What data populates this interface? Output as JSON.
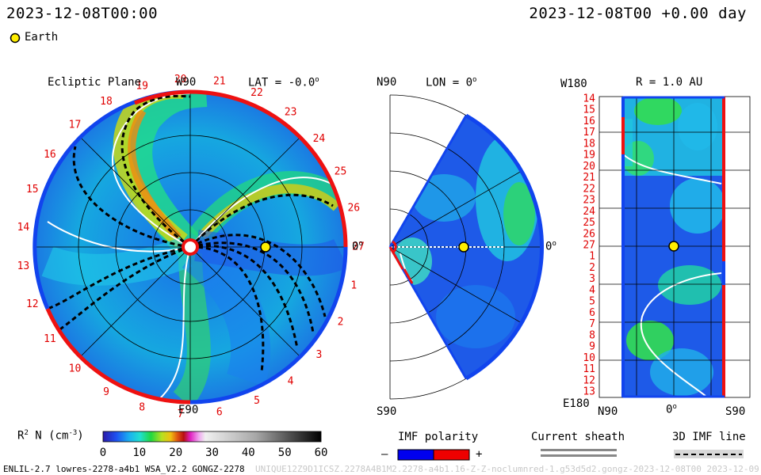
{
  "header": {
    "timestamp_left": "2023-12-08T00:00",
    "timestamp_right": "2023-12-08T00 +0.00 day"
  },
  "legend": {
    "earth_label": "Earth"
  },
  "panels": {
    "ecliptic": {
      "title": "Ecliptic Plane",
      "top_label": "W90",
      "bottom_label": "E90",
      "right_label": "0",
      "lat_label": "LAT = -0.0"
    },
    "meridional": {
      "top_label": "N90",
      "bottom_label": "S90",
      "right_label": "0",
      "lon_label": "LON = 0"
    },
    "radial": {
      "title": "R = 1.0 AU",
      "top_label": "W180",
      "bottom_label": "E180",
      "x_left": "N90",
      "x_mid": "0",
      "x_right": "S90"
    }
  },
  "colorbar": {
    "label": "R",
    "label_sup": "2",
    "label_rest": " N (cm",
    "label_unit_sup": "-3",
    "label_end": ")",
    "ticks": [
      "0",
      "10",
      "20",
      "30",
      "40",
      "50",
      "60"
    ]
  },
  "imf": {
    "title": "IMF polarity",
    "minus": "–",
    "plus": "+"
  },
  "sheath": {
    "title": "Current sheath"
  },
  "imf_line": {
    "title": "3D IMF line"
  },
  "footer": {
    "left": "ENLIL-2.7 lowres-2278-a4b1 WSA_V2.2 GONGZ-2278",
    "right": "UNIQUE12Z9D1ICSZ.2278A4B1M2.2278-a4b1.16-Z-Z-noclumnred-1.g53d5d2.gongz-2023-12-08T00   2023-12-09"
  },
  "chart_data": {
    "type": "heatmap",
    "quantity": "R2 N (cm-3)",
    "colorbar_range": [
      0,
      60
    ],
    "colorbar_ticks": [
      0,
      10,
      20,
      30,
      40,
      50,
      60
    ],
    "carrington_labels": [
      "20",
      "21",
      "22",
      "23",
      "24",
      "25",
      "26",
      "27",
      "1",
      "2",
      "3",
      "4",
      "5",
      "6",
      "7",
      "8",
      "9",
      "10",
      "11",
      "12",
      "13",
      "14",
      "15",
      "16",
      "17",
      "18",
      "19"
    ],
    "radial_rows": [
      "14",
      "15",
      "16",
      "17",
      "18",
      "19",
      "20",
      "21",
      "22",
      "23",
      "24",
      "25",
      "26",
      "27",
      "1",
      "2",
      "3",
      "4",
      "5",
      "6",
      "7",
      "8",
      "9",
      "10",
      "11",
      "12",
      "13"
    ],
    "earth": {
      "lat": 0.0,
      "lon": 0,
      "r_au": 1.0
    },
    "time_offset_day": 0.0,
    "colors": {
      "ring_red": "#ee1111",
      "ring_blue": "#1144ee",
      "imf_minus": "#0000ee",
      "imf_plus": "#ee0000",
      "earth": "#ffee00"
    }
  }
}
